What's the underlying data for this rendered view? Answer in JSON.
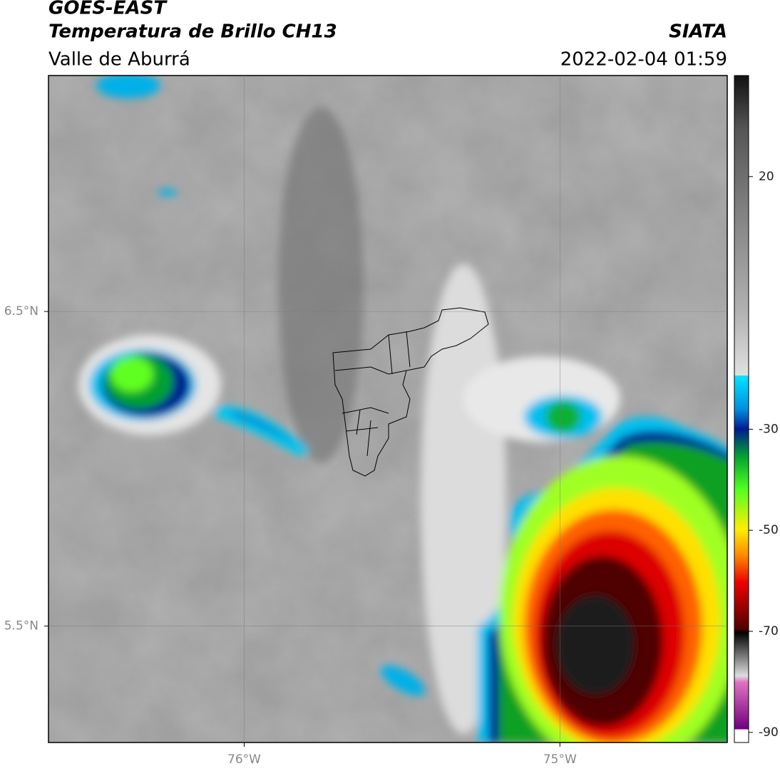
{
  "header": {
    "title": "GOES-EAST",
    "subtitle": "Temperatura de Brillo CH13",
    "region": "Valle de Aburrá",
    "source": "SIATA",
    "datetime": "2022-02-04 01:59"
  },
  "map": {
    "lon_range": [
      -76.62,
      -74.47
    ],
    "lat_range": [
      5.13,
      7.25
    ],
    "lon_ticks": [
      {
        "value": -76,
        "label": "76°W"
      },
      {
        "value": -75,
        "label": "75°W"
      }
    ],
    "lat_ticks": [
      {
        "value": 6.5,
        "label": "6.5°N"
      },
      {
        "value": 5.5,
        "label": "5.5°N"
      }
    ]
  },
  "colorbar": {
    "range": [
      -92,
      40
    ],
    "ticks": [
      20,
      -30,
      -50,
      -70,
      -90
    ]
  }
}
